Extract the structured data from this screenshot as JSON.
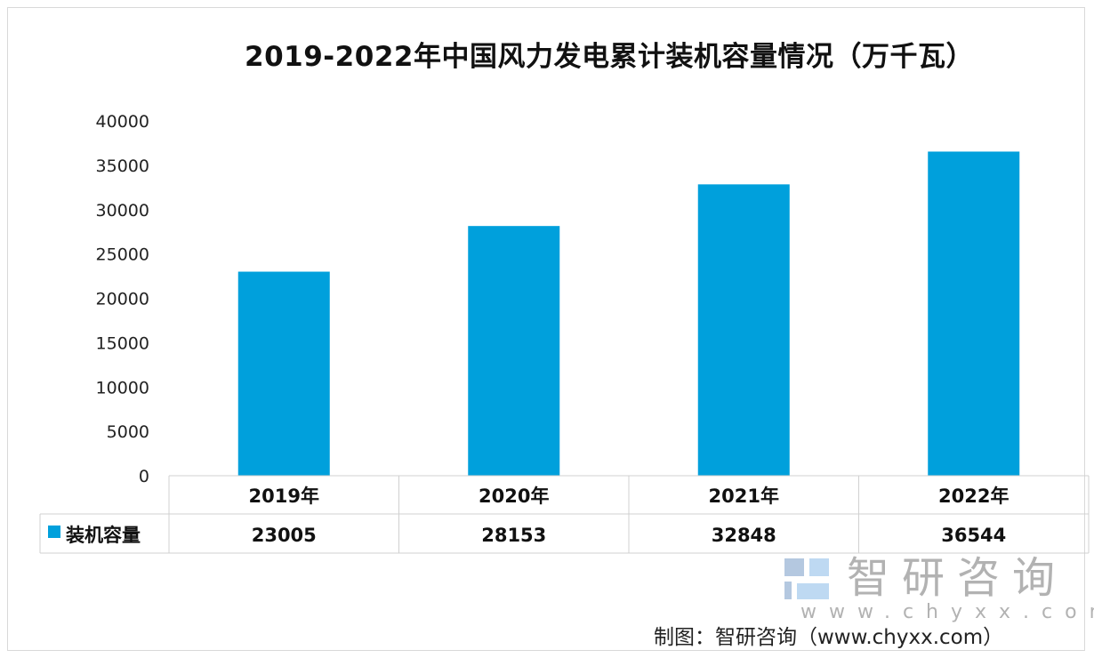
{
  "chart_data": {
    "type": "bar",
    "title": "2019-2022年中国风力发电累计装机容量情况（万千瓦）",
    "categories": [
      "2019年",
      "2020年",
      "2021年",
      "2022年"
    ],
    "series": [
      {
        "name": "装机容量",
        "values": [
          23005,
          28153,
          32848,
          36544
        ],
        "color": "#00a0dc"
      }
    ],
    "ylim": [
      0,
      40000
    ],
    "yticks": [
      "0",
      "5000",
      "10000",
      "15000",
      "20000",
      "25000",
      "30000",
      "35000",
      "40000"
    ],
    "grid": false,
    "legend": "data-table-left"
  },
  "watermark": {
    "name": "智研咨询",
    "url": "www.chyxx.com"
  },
  "source": "制图：智研咨询（www.chyxx.com）"
}
